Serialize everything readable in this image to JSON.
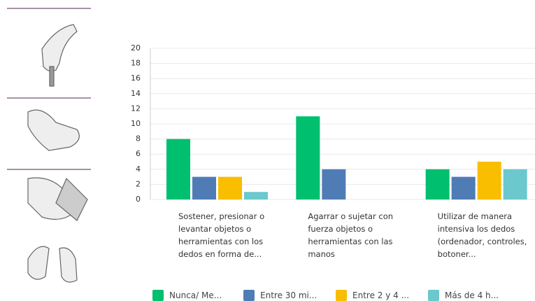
{
  "chart_data": {
    "type": "bar",
    "categories": [
      "Sostener, presionar o levantar objetos o herramientas con los dedos en forma de...",
      "Agarrar o sujetar con fuerza objetos o herramientas con las manos",
      "Utilizar de manera intensiva los dedos (ordenador, controles, botoner..."
    ],
    "series": [
      {
        "name": "Nunca/ Me...",
        "color": "#00bf6f",
        "values": [
          8,
          11,
          4
        ]
      },
      {
        "name": "Entre 30 mi...",
        "color": "#507cb6",
        "values": [
          3,
          4,
          3
        ]
      },
      {
        "name": "Entre 2 y 4 ...",
        "color": "#f9be00",
        "values": [
          3,
          0,
          5
        ]
      },
      {
        "name": "Más de 4 h...",
        "color": "#6bc8cd",
        "values": [
          1,
          0,
          4
        ]
      }
    ],
    "ylim": [
      0,
      20
    ],
    "yticks": [
      0,
      2,
      4,
      6,
      8,
      10,
      12,
      14,
      16,
      18,
      20
    ],
    "grid": true
  }
}
